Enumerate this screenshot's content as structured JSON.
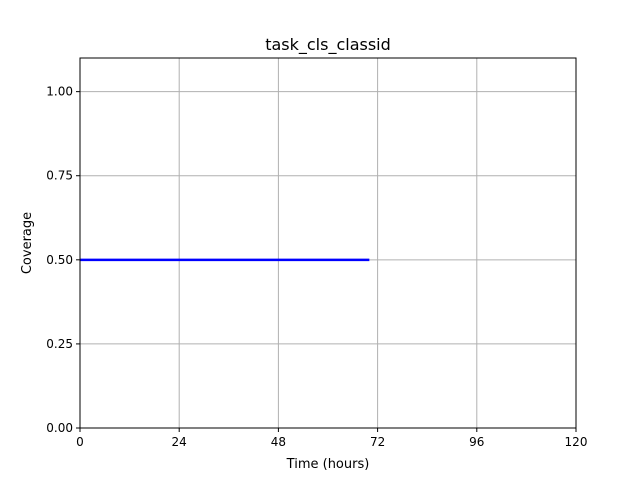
{
  "chart_data": {
    "type": "line",
    "title": "task_cls_classid",
    "xlabel": "Time (hours)",
    "ylabel": "Coverage",
    "xlim": [
      0,
      120
    ],
    "ylim": [
      0,
      1.1
    ],
    "xticks": [
      0,
      24,
      48,
      72,
      96,
      120
    ],
    "xtick_labels": [
      "0",
      "24",
      "48",
      "72",
      "96",
      "120"
    ],
    "yticks": [
      0,
      0.25,
      0.5,
      0.75,
      1.0
    ],
    "ytick_labels": [
      "0.00",
      "0.25",
      "0.50",
      "0.75",
      "1.00"
    ],
    "grid": true,
    "legend": false,
    "series": [
      {
        "color": "#0000ff",
        "x": [
          0,
          70
        ],
        "y": [
          0.5,
          0.5
        ]
      }
    ]
  }
}
